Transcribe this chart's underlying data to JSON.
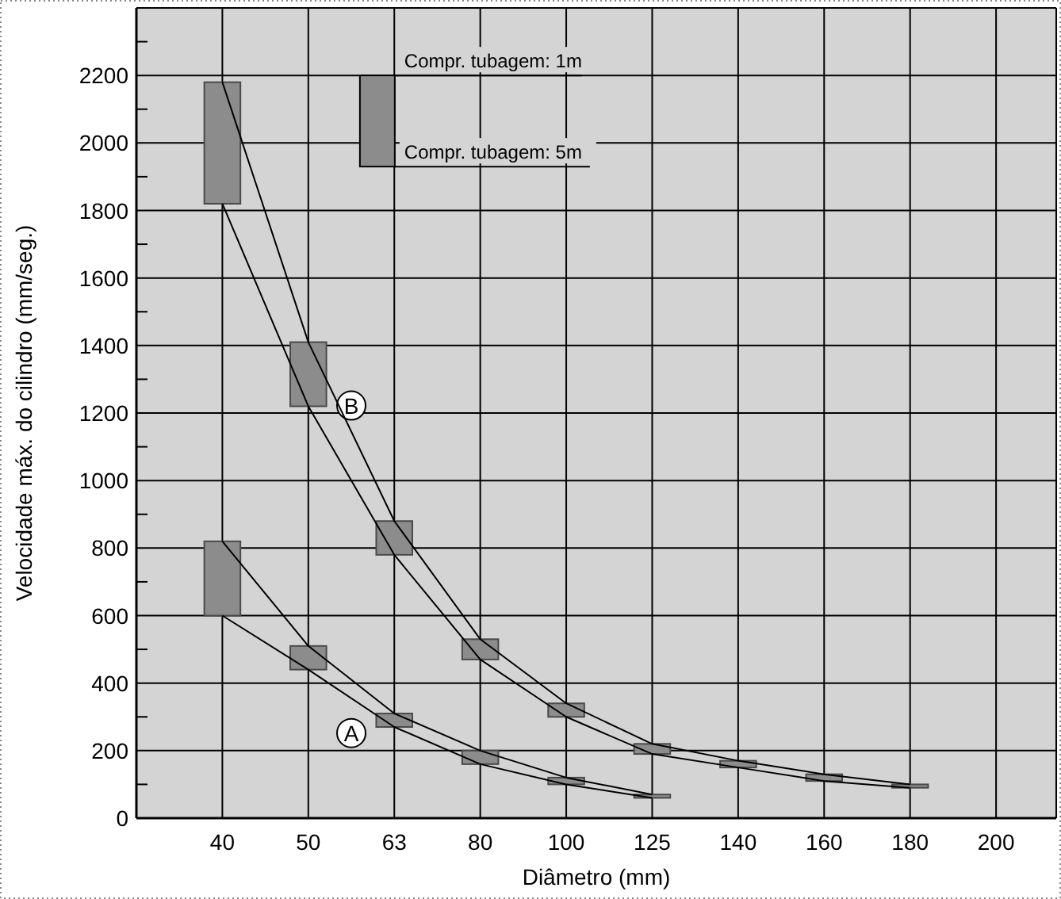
{
  "chart_data": {
    "type": "bar",
    "xlabel": "Diâmetro (mm)",
    "ylabel": "Velocidade máx. do cilindro (mm/seg.)",
    "categories": [
      "40",
      "50",
      "63",
      "80",
      "100",
      "125",
      "140",
      "160",
      "180",
      "200"
    ],
    "series": [
      {
        "name": "B",
        "color": "#8c8c8c",
        "base": [
          1820,
          1220,
          780,
          470,
          300,
          190,
          150,
          110,
          90,
          null
        ],
        "values": [
          360,
          190,
          100,
          60,
          40,
          30,
          20,
          20,
          10,
          null
        ]
      },
      {
        "name": "A",
        "color": "#8c8c8c",
        "base": [
          600,
          440,
          270,
          160,
          100,
          60,
          null,
          null,
          null,
          null
        ],
        "values": [
          220,
          70,
          40,
          40,
          20,
          10,
          null,
          null,
          null,
          null
        ]
      },
      {
        "type": "line",
        "color": "#000000",
        "values": [
          2180,
          1410,
          880,
          530,
          340,
          220,
          170,
          130,
          100,
          null
        ]
      },
      {
        "type": "line",
        "color": "#000000",
        "values": [
          1820,
          1220,
          780,
          470,
          300,
          190,
          150,
          110,
          90,
          null
        ]
      },
      {
        "type": "line",
        "color": "#000000",
        "values": [
          820,
          510,
          310,
          200,
          120,
          70,
          null,
          null,
          null,
          null
        ]
      },
      {
        "type": "line",
        "color": "#000000",
        "values": [
          600,
          440,
          270,
          160,
          100,
          60,
          null,
          null,
          null,
          null
        ]
      }
    ],
    "annotations": [
      "Compr. tubagem: 1m",
      "Compr. tubagem: 5m"
    ],
    "ylim": [
      0,
      2400
    ],
    "yticks": [
      0,
      {
        "value": 100,
        "label": null
      },
      200,
      {
        "value": 300,
        "label": null
      },
      400,
      {
        "value": 500,
        "label": null
      },
      600,
      {
        "value": 700,
        "label": null
      },
      800,
      {
        "value": 900,
        "label": null
      },
      1000,
      {
        "value": 1100,
        "label": null
      },
      1200,
      {
        "value": 1300,
        "label": null
      },
      1400,
      {
        "value": 1500,
        "label": null
      },
      1600,
      {
        "value": 1700,
        "label": null
      },
      1800,
      {
        "value": 1900,
        "label": null
      },
      2000,
      {
        "value": 2100,
        "label": null
      },
      2200,
      {
        "value": 2300,
        "label": null
      }
    ],
    "grid": true
  }
}
